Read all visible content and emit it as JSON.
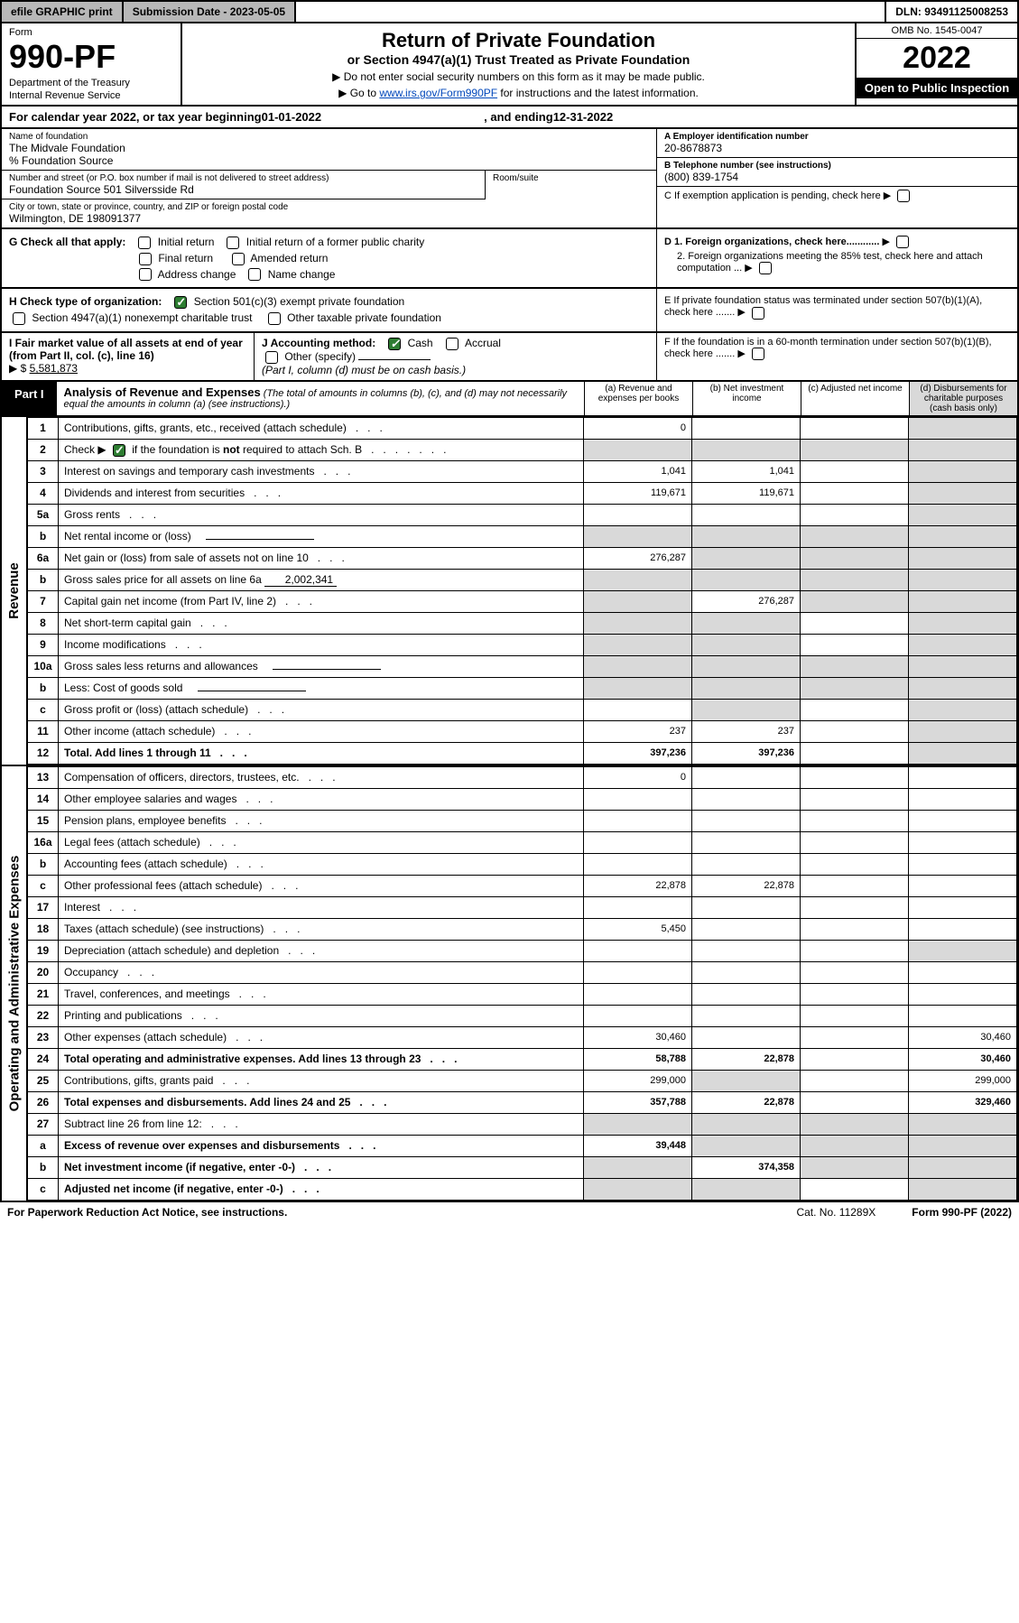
{
  "topbar": {
    "efile": "efile GRAPHIC print",
    "submission": "Submission Date - 2023-05-05",
    "dln": "DLN: 93491125008253"
  },
  "header": {
    "form_word": "Form",
    "form_no": "990-PF",
    "dept1": "Department of the Treasury",
    "dept2": "Internal Revenue Service",
    "title": "Return of Private Foundation",
    "subtitle": "or Section 4947(a)(1) Trust Treated as Private Foundation",
    "note1": "▶ Do not enter social security numbers on this form as it may be made public.",
    "note2_pre": "▶ Go to ",
    "note2_link": "www.irs.gov/Form990PF",
    "note2_post": " for instructions and the latest information.",
    "omb": "OMB No. 1545-0047",
    "year": "2022",
    "open": "Open to Public Inspection"
  },
  "cal": {
    "pre": "For calendar year 2022, or tax year beginning ",
    "begin": "01-01-2022",
    "mid": " , and ending ",
    "end": "12-31-2022"
  },
  "foundation": {
    "name_lbl": "Name of foundation",
    "name": "The Midvale Foundation",
    "care": "% Foundation Source",
    "addr_lbl": "Number and street (or P.O. box number if mail is not delivered to street address)",
    "addr": "Foundation Source 501 Silversside Rd",
    "room_lbl": "Room/suite",
    "city_lbl": "City or town, state or province, country, and ZIP or foreign postal code",
    "city": "Wilmington, DE  198091377",
    "ein_lbl": "A Employer identification number",
    "ein": "20-8678873",
    "tel_lbl": "B Telephone number (see instructions)",
    "tel": "(800) 839-1754",
    "c_lbl": "C If exemption application is pending, check here",
    "d1": "D 1. Foreign organizations, check here............",
    "d2": "2. Foreign organizations meeting the 85% test, check here and attach computation ...",
    "e_lbl": "E  If private foundation status was terminated under section 507(b)(1)(A), check here .......",
    "f_lbl": "F  If the foundation is in a 60-month termination under section 507(b)(1)(B), check here .......",
    "g_lbl": "G Check all that apply:",
    "g_opts": [
      "Initial return",
      "Initial return of a former public charity",
      "Final return",
      "Amended return",
      "Address change",
      "Name change"
    ],
    "h_lbl": "H Check type of organization:",
    "h_opt1": "Section 501(c)(3) exempt private foundation",
    "h_opt2": "Section 4947(a)(1) nonexempt charitable trust",
    "h_opt3": "Other taxable private foundation",
    "i_lbl": "I Fair market value of all assets at end of year (from Part II, col. (c), line 16)",
    "i_val": "5,581,873",
    "j_lbl": "J Accounting method:",
    "j_cash": "Cash",
    "j_accr": "Accrual",
    "j_other": "Other (specify)",
    "j_note": "(Part I, column (d) must be on cash basis.)"
  },
  "part1": {
    "label": "Part I",
    "title": "Analysis of Revenue and Expenses",
    "title_note": " (The total of amounts in columns (b), (c), and (d) may not necessarily equal the amounts in column (a) (see instructions).)",
    "col_a": "(a) Revenue and expenses per books",
    "col_b": "(b) Net investment income",
    "col_c": "(c) Adjusted net income",
    "col_d": "(d) Disbursements for charitable purposes (cash basis only)"
  },
  "sections": {
    "revenue": "Revenue",
    "expenses": "Operating and Administrative Expenses"
  },
  "rows": [
    {
      "n": "1",
      "d": "Contributions, gifts, grants, etc., received (attach schedule)",
      "a": "0",
      "b": "",
      "c": "",
      "dd": "",
      "greyD": true
    },
    {
      "n": "2",
      "d": "Check ▶ ☑ if the foundation is not required to attach Sch. B",
      "a": "",
      "b": "",
      "c": "",
      "dd": "",
      "greyA": true,
      "greyB": true,
      "greyC": true,
      "greyD": true,
      "check": true
    },
    {
      "n": "3",
      "d": "Interest on savings and temporary cash investments",
      "a": "1,041",
      "b": "1,041",
      "c": "",
      "dd": "",
      "greyD": true
    },
    {
      "n": "4",
      "d": "Dividends and interest from securities",
      "a": "119,671",
      "b": "119,671",
      "c": "",
      "dd": "",
      "greyD": true
    },
    {
      "n": "5a",
      "d": "Gross rents",
      "a": "",
      "b": "",
      "c": "",
      "dd": "",
      "greyD": true
    },
    {
      "n": "b",
      "d": "Net rental income or (loss)",
      "a": "",
      "b": "",
      "c": "",
      "dd": "",
      "greyA": true,
      "greyB": true,
      "greyC": true,
      "greyD": true,
      "uline": true
    },
    {
      "n": "6a",
      "d": "Net gain or (loss) from sale of assets not on line 10",
      "a": "276,287",
      "b": "",
      "c": "",
      "dd": "",
      "greyB": true,
      "greyC": true,
      "greyD": true
    },
    {
      "n": "b",
      "d": "Gross sales price for all assets on line 6a",
      "a": "",
      "b": "",
      "c": "",
      "dd": "",
      "greyA": true,
      "greyB": true,
      "greyC": true,
      "greyD": true,
      "inline_val": "2,002,341"
    },
    {
      "n": "7",
      "d": "Capital gain net income (from Part IV, line 2)",
      "a": "",
      "b": "276,287",
      "c": "",
      "dd": "",
      "greyA": true,
      "greyC": true,
      "greyD": true
    },
    {
      "n": "8",
      "d": "Net short-term capital gain",
      "a": "",
      "b": "",
      "c": "",
      "dd": "",
      "greyA": true,
      "greyB": true,
      "greyD": true
    },
    {
      "n": "9",
      "d": "Income modifications",
      "a": "",
      "b": "",
      "c": "",
      "dd": "",
      "greyA": true,
      "greyB": true,
      "greyD": true
    },
    {
      "n": "10a",
      "d": "Gross sales less returns and allowances",
      "a": "",
      "b": "",
      "c": "",
      "dd": "",
      "greyA": true,
      "greyB": true,
      "greyC": true,
      "greyD": true,
      "uline": true
    },
    {
      "n": "b",
      "d": "Less: Cost of goods sold",
      "a": "",
      "b": "",
      "c": "",
      "dd": "",
      "greyA": true,
      "greyB": true,
      "greyC": true,
      "greyD": true,
      "uline": true
    },
    {
      "n": "c",
      "d": "Gross profit or (loss) (attach schedule)",
      "a": "",
      "b": "",
      "c": "",
      "dd": "",
      "greyB": true,
      "greyD": true
    },
    {
      "n": "11",
      "d": "Other income (attach schedule)",
      "a": "237",
      "b": "237",
      "c": "",
      "dd": "",
      "greyD": true
    },
    {
      "n": "12",
      "d": "Total. Add lines 1 through 11",
      "a": "397,236",
      "b": "397,236",
      "c": "",
      "dd": "",
      "greyD": true,
      "bold": true
    }
  ],
  "exp_rows": [
    {
      "n": "13",
      "d": "Compensation of officers, directors, trustees, etc.",
      "a": "0",
      "b": "",
      "c": "",
      "dd": ""
    },
    {
      "n": "14",
      "d": "Other employee salaries and wages",
      "a": "",
      "b": "",
      "c": "",
      "dd": ""
    },
    {
      "n": "15",
      "d": "Pension plans, employee benefits",
      "a": "",
      "b": "",
      "c": "",
      "dd": ""
    },
    {
      "n": "16a",
      "d": "Legal fees (attach schedule)",
      "a": "",
      "b": "",
      "c": "",
      "dd": ""
    },
    {
      "n": "b",
      "d": "Accounting fees (attach schedule)",
      "a": "",
      "b": "",
      "c": "",
      "dd": ""
    },
    {
      "n": "c",
      "d": "Other professional fees (attach schedule)",
      "a": "22,878",
      "b": "22,878",
      "c": "",
      "dd": ""
    },
    {
      "n": "17",
      "d": "Interest",
      "a": "",
      "b": "",
      "c": "",
      "dd": ""
    },
    {
      "n": "18",
      "d": "Taxes (attach schedule) (see instructions)",
      "a": "5,450",
      "b": "",
      "c": "",
      "dd": ""
    },
    {
      "n": "19",
      "d": "Depreciation (attach schedule) and depletion",
      "a": "",
      "b": "",
      "c": "",
      "dd": "",
      "greyD": true
    },
    {
      "n": "20",
      "d": "Occupancy",
      "a": "",
      "b": "",
      "c": "",
      "dd": ""
    },
    {
      "n": "21",
      "d": "Travel, conferences, and meetings",
      "a": "",
      "b": "",
      "c": "",
      "dd": ""
    },
    {
      "n": "22",
      "d": "Printing and publications",
      "a": "",
      "b": "",
      "c": "",
      "dd": ""
    },
    {
      "n": "23",
      "d": "Other expenses (attach schedule)",
      "a": "30,460",
      "b": "",
      "c": "",
      "dd": "30,460"
    },
    {
      "n": "24",
      "d": "Total operating and administrative expenses. Add lines 13 through 23",
      "a": "58,788",
      "b": "22,878",
      "c": "",
      "dd": "30,460",
      "bold": true
    },
    {
      "n": "25",
      "d": "Contributions, gifts, grants paid",
      "a": "299,000",
      "b": "",
      "c": "",
      "dd": "299,000",
      "greyB": true
    },
    {
      "n": "26",
      "d": "Total expenses and disbursements. Add lines 24 and 25",
      "a": "357,788",
      "b": "22,878",
      "c": "",
      "dd": "329,460",
      "bold": true
    },
    {
      "n": "27",
      "d": "Subtract line 26 from line 12:",
      "a": "",
      "b": "",
      "c": "",
      "dd": "",
      "greyA": true,
      "greyB": true,
      "greyC": true,
      "greyD": true
    },
    {
      "n": "a",
      "d": "Excess of revenue over expenses and disbursements",
      "a": "39,448",
      "b": "",
      "c": "",
      "dd": "",
      "greyB": true,
      "greyC": true,
      "greyD": true,
      "bold": true
    },
    {
      "n": "b",
      "d": "Net investment income (if negative, enter -0-)",
      "a": "",
      "b": "374,358",
      "c": "",
      "dd": "",
      "greyA": true,
      "greyC": true,
      "greyD": true,
      "bold": true
    },
    {
      "n": "c",
      "d": "Adjusted net income (if negative, enter -0-)",
      "a": "",
      "b": "",
      "c": "",
      "dd": "",
      "greyA": true,
      "greyB": true,
      "greyD": true,
      "bold": true
    }
  ],
  "footer": {
    "left": "For Paperwork Reduction Act Notice, see instructions.",
    "mid": "Cat. No. 11289X",
    "right": "Form 990-PF (2022)"
  },
  "colors": {
    "grey": "#d9d9d9",
    "topgrey": "#b8b8b8",
    "link": "#0047bb",
    "check": "#2e7d32"
  }
}
